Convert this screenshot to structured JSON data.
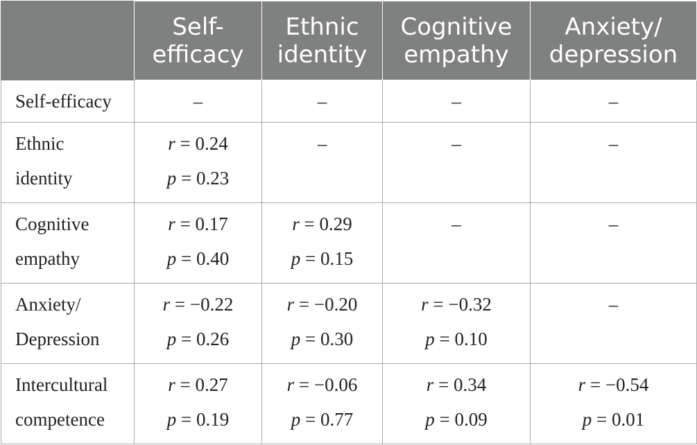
{
  "header": {
    "corner": "",
    "columns": [
      {
        "line1": "Self-",
        "line2": "efficacy"
      },
      {
        "line1": "Ethnic",
        "line2": "identity"
      },
      {
        "line1": "Cognitive",
        "line2": "empathy"
      },
      {
        "line1": "Anxiety/",
        "line2": "depression"
      }
    ]
  },
  "rows": [
    {
      "label1": "Self-efficacy",
      "label2": "",
      "cells": [
        {
          "dash": "–"
        },
        {
          "dash": "–"
        },
        {
          "dash": "–"
        },
        {
          "dash": "–"
        }
      ]
    },
    {
      "label1": "Ethnic",
      "label2": "identity",
      "cells": [
        {
          "r": "0.24",
          "p": "0.23"
        },
        {
          "dash": "–"
        },
        {
          "dash": "–"
        },
        {
          "dash": "–"
        }
      ]
    },
    {
      "label1": "Cognitive",
      "label2": "empathy",
      "cells": [
        {
          "r": "0.17",
          "p": "0.40"
        },
        {
          "r": "0.29",
          "p": "0.15"
        },
        {
          "dash": "–"
        },
        {
          "dash": "–"
        }
      ]
    },
    {
      "label1": "Anxiety/",
      "label2": "Depression",
      "cells": [
        {
          "r": "−0.22",
          "p": "0.26"
        },
        {
          "r": "−0.20",
          "p": "0.30"
        },
        {
          "r": "−0.32",
          "p": "0.10"
        },
        {
          "dash": "–"
        }
      ]
    },
    {
      "label1": "Intercultural",
      "label2": "competence",
      "cells": [
        {
          "r": "0.27",
          "p": "0.19"
        },
        {
          "r": "−0.06",
          "p": "0.77"
        },
        {
          "r": "0.34",
          "p": "0.09"
        },
        {
          "r": "−0.54",
          "p": "0.01"
        }
      ]
    }
  ],
  "symbols": {
    "r": "r",
    "p": "p",
    "eq": " = "
  }
}
